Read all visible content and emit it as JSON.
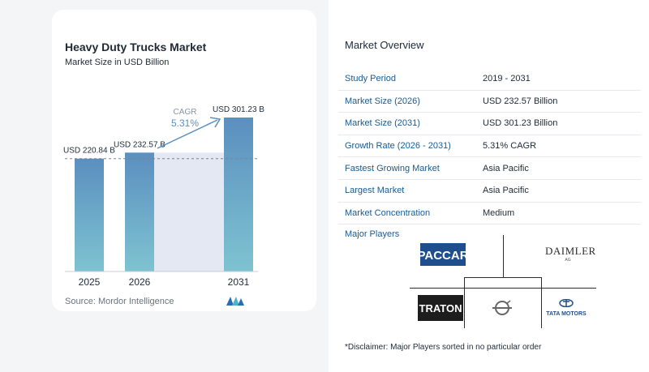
{
  "chart_data": {
    "type": "bar",
    "title": "Heavy Duty Trucks Market",
    "subtitle": "Market Size in USD Billion",
    "categories": [
      "2025",
      "2026",
      "2031"
    ],
    "values": [
      220.84,
      232.57,
      301.23
    ],
    "data_labels": [
      "USD 220.84 B",
      "USD 232.57 B",
      "USD 301.23 B"
    ],
    "cagr_label": "CAGR",
    "cagr_value": "5.31%",
    "ylim": [
      0,
      301.23
    ],
    "grid": false,
    "colors": {
      "bar_top": "#5b8fbf",
      "bar_bottom": "#7ec3d1",
      "band": "#e3e8f2",
      "arrow": "#5b8fbf"
    }
  },
  "source": "Source: Mordor Intelligence",
  "logo": {
    "icon": "mordor-intelligence-logo"
  },
  "overview": {
    "title": "Market Overview",
    "rows": [
      {
        "key": "Study Period",
        "value": "2019 - 2031"
      },
      {
        "key": "Market Size (2026)",
        "value": "USD 232.57 Billion"
      },
      {
        "key": "Market Size (2031)",
        "value": "USD 301.23 Billion"
      },
      {
        "key": "Growth Rate (2026 - 2031)",
        "value": "5.31% CAGR"
      },
      {
        "key": "Fastest Growing Market",
        "value": "Asia Pacific"
      },
      {
        "key": "Largest Market",
        "value": "Asia Pacific"
      },
      {
        "key": "Market Concentration",
        "value": "Medium"
      }
    ]
  },
  "players": {
    "title": "Major Players",
    "logos": [
      {
        "name": "PACCAR",
        "icon": "paccar-logo"
      },
      {
        "name": "DAIMLER",
        "sub": "AG",
        "icon": "daimler-logo"
      },
      {
        "name": "TRATON",
        "icon": "traton-logo"
      },
      {
        "name": "",
        "icon": "volvo-logo"
      },
      {
        "name": "TATA MOTORS",
        "icon": "tata-motors-logo"
      }
    ]
  },
  "disclaimer": "*Disclaimer: Major Players sorted in no particular order"
}
